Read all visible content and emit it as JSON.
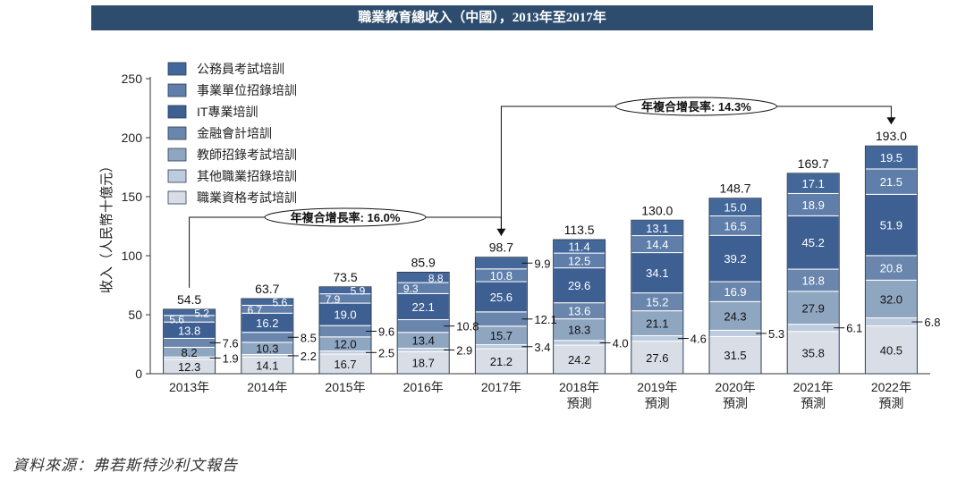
{
  "title": "職業教育總收入（中國），2013年至2017年",
  "source": "資料來源：弗若斯特沙利文報告",
  "chart_data": {
    "type": "bar",
    "stacked": true,
    "title": "職業教育總收入（中國），2013年至2017年",
    "ylabel": "收入（人民幣十億元）",
    "ylim": [
      0,
      250
    ],
    "yticks": [
      0,
      50,
      100,
      150,
      200,
      250
    ],
    "categories": [
      "2013年",
      "2014年",
      "2015年",
      "2016年",
      "2017年",
      "2018年",
      "2019年",
      "2020年",
      "2021年",
      "2022年"
    ],
    "category_sublabels": [
      "",
      "",
      "",
      "",
      "",
      "預測",
      "預測",
      "預測",
      "預測",
      "預測"
    ],
    "totals": [
      "54.5",
      "63.7",
      "73.5",
      "85.9",
      "98.7",
      "113.5",
      "130.0",
      "148.7",
      "169.7",
      "193.0"
    ],
    "legend_position": "top-left",
    "series": [
      {
        "name": "職業資格考試培訓",
        "color": "#d9dee6",
        "values": [
          12.3,
          14.1,
          16.7,
          18.7,
          21.2,
          24.2,
          27.6,
          31.5,
          35.8,
          40.5
        ]
      },
      {
        "name": "其他職業招錄培訓",
        "color": "#bccbdd",
        "values": [
          1.9,
          2.2,
          2.5,
          2.9,
          3.4,
          4.0,
          4.6,
          5.3,
          6.1,
          6.8
        ]
      },
      {
        "name": "教師招錄考試培訓",
        "color": "#8fa6c1",
        "values": [
          8.2,
          10.3,
          12.0,
          13.4,
          15.7,
          18.3,
          21.1,
          24.3,
          27.9,
          32.0
        ]
      },
      {
        "name": "金融會計培訓",
        "color": "#6a86ad",
        "values": [
          7.6,
          8.5,
          9.6,
          10.8,
          12.1,
          13.6,
          15.2,
          16.9,
          18.8,
          20.8
        ]
      },
      {
        "name": "IT專業培訓",
        "color": "#3e5f92",
        "values": [
          13.8,
          16.2,
          19.0,
          22.1,
          25.6,
          29.6,
          34.1,
          39.2,
          45.2,
          51.9
        ]
      },
      {
        "name": "事業單位招錄培訓",
        "color": "#5f7eaa",
        "values": [
          5.6,
          6.7,
          7.9,
          9.3,
          10.8,
          12.5,
          14.4,
          16.5,
          18.9,
          21.5
        ]
      },
      {
        "name": "公務員考試培訓",
        "color": "#44679a",
        "values": [
          5.2,
          5.6,
          5.9,
          8.8,
          9.9,
          11.4,
          13.1,
          15.0,
          17.1,
          19.5
        ]
      }
    ],
    "legend_order": [
      "公務員考試培訓",
      "事業單位招錄培訓",
      "IT專業培訓",
      "金融會計培訓",
      "教師招錄考試培訓",
      "其他職業招錄培訓",
      "職業資格考試培訓"
    ],
    "annotations": [
      {
        "label": "年複合增長率: 16.0%",
        "from": "2013年",
        "to": "2017年"
      },
      {
        "label": "年複合增長率: 14.3%",
        "from": "2017年",
        "to": "2022年"
      }
    ]
  }
}
